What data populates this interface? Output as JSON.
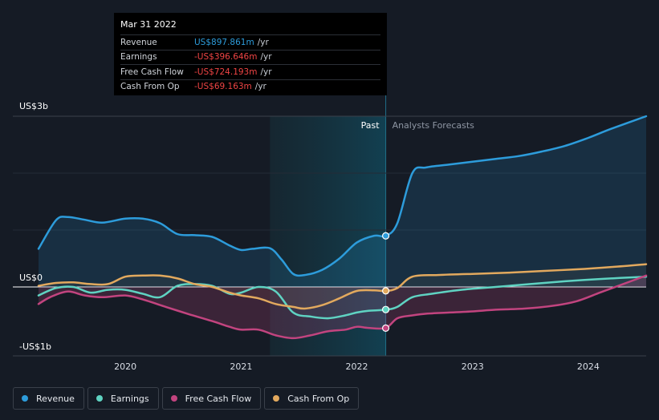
{
  "tooltip": {
    "date": "Mar 31 2022",
    "rows": [
      {
        "label": "Revenue",
        "value": "US$897.861m",
        "unit": "/yr",
        "color": "#2d9cdb"
      },
      {
        "label": "Earnings",
        "value": "-US$396.646m",
        "unit": "/yr",
        "color": "#ef4444"
      },
      {
        "label": "Free Cash Flow",
        "value": "-US$724.193m",
        "unit": "/yr",
        "color": "#ef4444"
      },
      {
        "label": "Cash From Op",
        "value": "-US$69.163m",
        "unit": "/yr",
        "color": "#ef4444"
      }
    ]
  },
  "legend": [
    {
      "label": "Revenue",
      "color": "#2d9cdb"
    },
    {
      "label": "Earnings",
      "color": "#5fd3c2"
    },
    {
      "label": "Free Cash Flow",
      "color": "#c2447f"
    },
    {
      "label": "Cash From Op",
      "color": "#e2a95e"
    }
  ],
  "chart_data": {
    "type": "line",
    "y_unit": "US$ billions",
    "ylim": [
      -1.0,
      3.0
    ],
    "xlim": [
      2019.25,
      2024.5
    ],
    "y_axis_labels": [
      "US$3b",
      "US$0",
      "-US$1b"
    ],
    "x_tick_labels": [
      "2020",
      "2021",
      "2022",
      "2023",
      "2024"
    ],
    "past_label": "Past",
    "forecast_label": "Analysts Forecasts",
    "past_start": 2021.25,
    "divider": 2022.25,
    "series": [
      {
        "name": "Revenue",
        "color": "#2d9cdb",
        "x": [
          2019.25,
          2019.4,
          2019.5,
          2019.65,
          2019.8,
          2020.0,
          2020.15,
          2020.3,
          2020.45,
          2020.6,
          2020.75,
          2020.9,
          2021.0,
          2021.1,
          2021.25,
          2021.35,
          2021.45,
          2021.55,
          2021.7,
          2021.85,
          2022.0,
          2022.15,
          2022.25,
          2022.35,
          2022.48,
          2022.6,
          2022.8,
          2023.0,
          2023.2,
          2023.4,
          2023.6,
          2023.8,
          2024.0,
          2024.2,
          2024.5
        ],
        "values": [
          0.67,
          1.17,
          1.23,
          1.18,
          1.13,
          1.2,
          1.2,
          1.12,
          0.93,
          0.91,
          0.88,
          0.73,
          0.65,
          0.67,
          0.68,
          0.48,
          0.23,
          0.21,
          0.3,
          0.5,
          0.78,
          0.9,
          0.9,
          1.12,
          2.0,
          2.1,
          2.15,
          2.2,
          2.25,
          2.3,
          2.38,
          2.48,
          2.62,
          2.78,
          3.0
        ]
      },
      {
        "name": "Earnings",
        "color": "#5fd3c2",
        "x": [
          2019.25,
          2019.4,
          2019.55,
          2019.7,
          2019.85,
          2020.0,
          2020.15,
          2020.3,
          2020.45,
          2020.6,
          2020.75,
          2020.9,
          2021.0,
          2021.15,
          2021.3,
          2021.45,
          2021.6,
          2021.75,
          2021.9,
          2022.0,
          2022.1,
          2022.25,
          2022.35,
          2022.48,
          2022.65,
          2022.9,
          2023.2,
          2023.5,
          2023.8,
          2024.1,
          2024.5
        ],
        "values": [
          -0.15,
          -0.02,
          0.0,
          -0.1,
          -0.05,
          -0.05,
          -0.12,
          -0.18,
          0.02,
          0.05,
          0.02,
          -0.12,
          -0.1,
          0.0,
          -0.08,
          -0.45,
          -0.52,
          -0.55,
          -0.5,
          -0.45,
          -0.42,
          -0.4,
          -0.35,
          -0.18,
          -0.12,
          -0.05,
          0.0,
          0.05,
          0.1,
          0.14,
          0.18
        ]
      },
      {
        "name": "Free Cash Flow",
        "color": "#c2447f",
        "x": [
          2019.25,
          2019.35,
          2019.5,
          2019.65,
          2019.8,
          2020.0,
          2020.15,
          2020.35,
          2020.55,
          2020.75,
          2020.9,
          2021.0,
          2021.15,
          2021.3,
          2021.45,
          2021.6,
          2021.75,
          2021.9,
          2022.0,
          2022.1,
          2022.25,
          2022.35,
          2022.48,
          2022.6,
          2022.8,
          2023.0,
          2023.2,
          2023.45,
          2023.7,
          2023.9,
          2024.1,
          2024.3,
          2024.5
        ],
        "values": [
          -0.3,
          -0.18,
          -0.08,
          -0.15,
          -0.18,
          -0.15,
          -0.22,
          -0.35,
          -0.48,
          -0.6,
          -0.7,
          -0.75,
          -0.75,
          -0.85,
          -0.9,
          -0.85,
          -0.78,
          -0.75,
          -0.7,
          -0.72,
          -0.72,
          -0.55,
          -0.5,
          -0.47,
          -0.45,
          -0.43,
          -0.4,
          -0.38,
          -0.33,
          -0.25,
          -0.1,
          0.05,
          0.2
        ]
      },
      {
        "name": "Cash From Op",
        "color": "#e2a95e",
        "x": [
          2019.25,
          2019.4,
          2019.55,
          2019.7,
          2019.85,
          2020.0,
          2020.15,
          2020.3,
          2020.45,
          2020.6,
          2020.75,
          2020.9,
          2021.0,
          2021.15,
          2021.3,
          2021.45,
          2021.55,
          2021.7,
          2021.85,
          2022.0,
          2022.15,
          2022.25,
          2022.35,
          2022.48,
          2022.7,
          2023.0,
          2023.3,
          2023.6,
          2023.9,
          2024.2,
          2024.5
        ],
        "values": [
          0.02,
          0.07,
          0.08,
          0.05,
          0.05,
          0.18,
          0.2,
          0.2,
          0.15,
          0.05,
          0.0,
          -0.1,
          -0.15,
          -0.2,
          -0.3,
          -0.35,
          -0.38,
          -0.32,
          -0.2,
          -0.07,
          -0.06,
          -0.07,
          -0.02,
          0.18,
          0.21,
          0.23,
          0.25,
          0.28,
          0.31,
          0.35,
          0.4
        ]
      }
    ],
    "tooltip_markers": [
      {
        "series": "Revenue",
        "x": 2022.25,
        "y": 0.898
      },
      {
        "series": "Earnings",
        "x": 2022.25,
        "y": -0.397
      },
      {
        "series": "Free Cash Flow",
        "x": 2022.25,
        "y": -0.724
      },
      {
        "series": "Cash From Op",
        "x": 2022.25,
        "y": -0.069
      }
    ]
  }
}
